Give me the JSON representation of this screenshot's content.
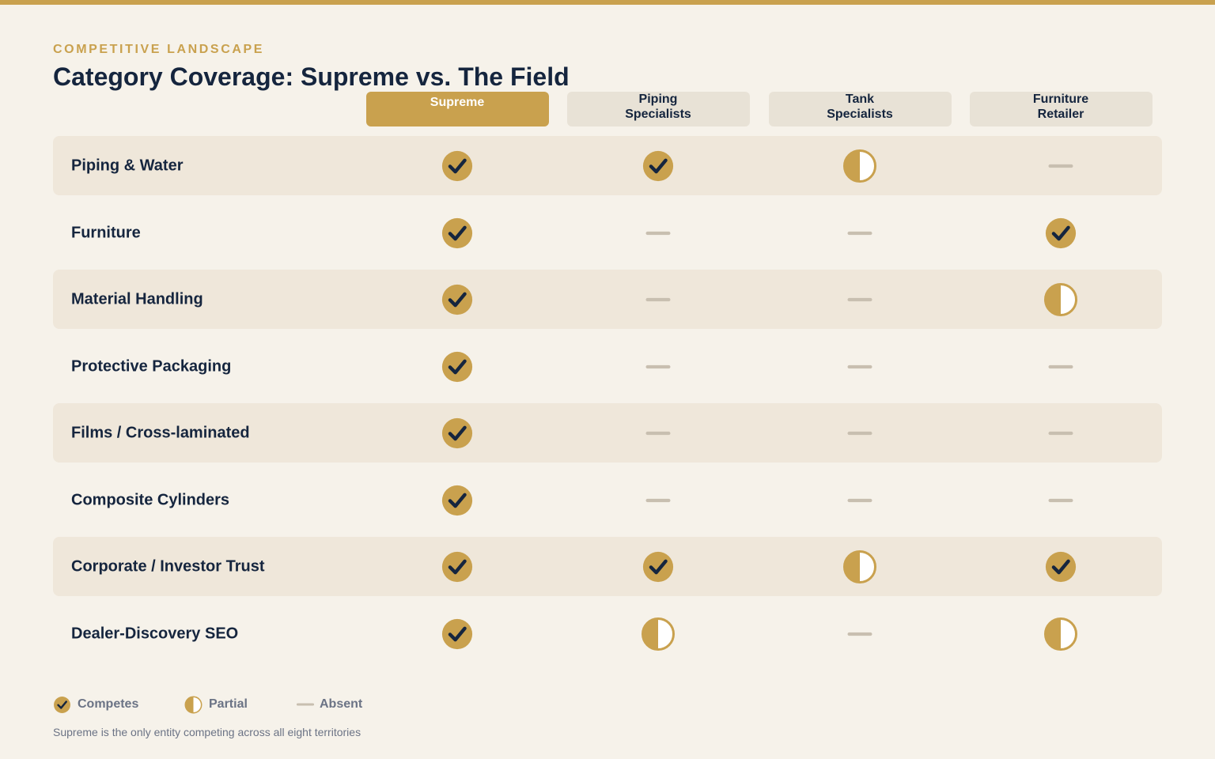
{
  "header": {
    "eyebrow": "COMPETITIVE LANDSCAPE",
    "title": "Category Coverage: Supreme vs. The Field"
  },
  "colors": {
    "accent": "#c9a14e",
    "navy": "#15253e",
    "absent": "#c8bfb0",
    "background": "#f6f2ea",
    "row_shade": "#efe7da",
    "header_chip": "#e8e2d6",
    "muted_text": "#6b7385"
  },
  "columns": [
    {
      "label": "Supreme",
      "highlight": true
    },
    {
      "label": "Piping\nSpecialists",
      "highlight": false
    },
    {
      "label": "Tank\nSpecialists",
      "highlight": false
    },
    {
      "label": "Furniture\nRetailer",
      "highlight": false
    }
  ],
  "rows": [
    {
      "label": "Piping & Water",
      "values": [
        "competes",
        "competes",
        "partial",
        "absent"
      ]
    },
    {
      "label": "Furniture",
      "values": [
        "competes",
        "absent",
        "absent",
        "competes"
      ]
    },
    {
      "label": "Material Handling",
      "values": [
        "competes",
        "absent",
        "absent",
        "partial"
      ]
    },
    {
      "label": "Protective Packaging",
      "values": [
        "competes",
        "absent",
        "absent",
        "absent"
      ]
    },
    {
      "label": "Films / Cross-laminated",
      "values": [
        "competes",
        "absent",
        "absent",
        "absent"
      ]
    },
    {
      "label": "Composite Cylinders",
      "values": [
        "competes",
        "absent",
        "absent",
        "absent"
      ]
    },
    {
      "label": "Corporate / Investor Trust",
      "values": [
        "competes",
        "competes",
        "partial",
        "competes"
      ]
    },
    {
      "label": "Dealer-Discovery SEO",
      "values": [
        "competes",
        "partial",
        "absent",
        "partial"
      ]
    }
  ],
  "legend": [
    {
      "key": "competes",
      "label": "Competes",
      "icon": "check-circle-icon"
    },
    {
      "key": "partial",
      "label": "Partial",
      "icon": "half-circle-icon"
    },
    {
      "key": "absent",
      "label": "Absent",
      "icon": "dash-icon"
    }
  ],
  "footnote": "Supreme is the only entity competing across all eight territories"
}
